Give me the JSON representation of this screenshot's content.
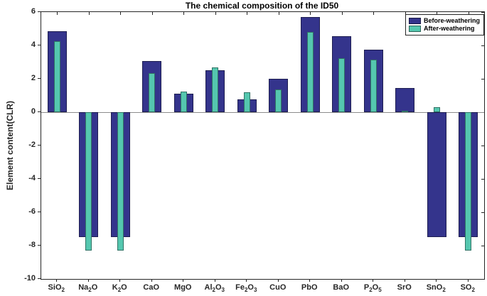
{
  "chart_data": {
    "type": "bar",
    "title": "The chemical composition of the ID50",
    "xlabel": "",
    "ylabel": "Element content(CLR)",
    "categories": [
      "SiO_2",
      "Na_2O",
      "K_2O",
      "CaO",
      "MgO",
      "Al_2O_3",
      "Fe_2O_3",
      "CuO",
      "PbO",
      "BaO",
      "P_2O_5",
      "SrO",
      "SnO_2",
      "SO_2"
    ],
    "series": [
      {
        "name": "Before-weathering",
        "color": "#34348C",
        "values": [
          4.85,
          -7.5,
          -7.5,
          3.05,
          1.1,
          2.5,
          0.75,
          2.0,
          5.7,
          4.55,
          3.75,
          1.45,
          -7.5,
          -7.5
        ]
      },
      {
        "name": "After-weathering",
        "color": "#55C7AF",
        "values": [
          4.25,
          -8.3,
          -8.3,
          2.35,
          1.25,
          2.7,
          1.2,
          1.35,
          4.8,
          3.25,
          3.15,
          0.1,
          0.3,
          -8.3
        ]
      }
    ],
    "ylim": [
      -10,
      6
    ],
    "yticks": [
      6,
      4,
      2,
      0,
      -2,
      -4,
      -6,
      -8,
      -10
    ],
    "grid": false,
    "legend_position": "top-right",
    "zero_line": true,
    "axis_color": "#262626",
    "background_color": "#ffffff"
  }
}
